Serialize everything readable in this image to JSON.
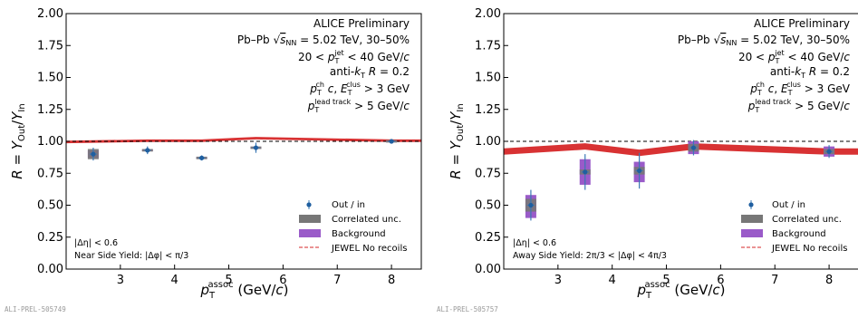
{
  "chart_data": [
    {
      "type": "scatter",
      "title": "",
      "xlabel": "p_T^assoc (GeV/c)",
      "ylabel": "R = Y_Out/Y_In",
      "xlim": [
        2.0,
        8.55
      ],
      "ylim": [
        0.0,
        2.0
      ],
      "xticks": [
        3,
        4,
        5,
        6,
        7,
        8
      ],
      "yticks": [
        0.0,
        0.25,
        0.5,
        0.75,
        1.0,
        1.25,
        1.5,
        1.75,
        2.0
      ],
      "xtick_labels": [
        "3",
        "4",
        "5",
        "6",
        "7",
        "8"
      ],
      "ytick_labels": [
        "0.00",
        "0.25",
        "0.50",
        "0.75",
        "1.00",
        "1.25",
        "1.50",
        "1.75",
        "2.00"
      ],
      "reference_line": 1.0,
      "info_lines": [
        "ALICE Preliminary",
        "Pb–Pb √sNN = 5.02 TeV, 30–50%",
        "20 < p_T^jet < 40 GeV/c",
        "anti-kT R = 0.2",
        "p_T^ch c, E_T^clus > 3 GeV",
        "p_T^lead track > 5 GeV/c"
      ],
      "legend": [
        "Out / in",
        "Correlated unc.",
        "Background",
        "JEWEL No recoils"
      ],
      "legend_placement": "lower-right",
      "notes": [
        "|Δη| < 0.6",
        "Near Side Yield: |Δφ| < π/3"
      ],
      "series": [
        {
          "name": "Out / in",
          "x": [
            2.5,
            3.5,
            4.5,
            5.5,
            8.0
          ],
          "y": [
            0.9,
            0.93,
            0.87,
            0.95,
            1.0
          ],
          "yerr": [
            0.05,
            0.03,
            0.02,
            0.04,
            0.01
          ]
        },
        {
          "name": "Correlated unc.",
          "x": [
            2.5,
            3.5,
            4.5,
            5.5,
            8.0
          ],
          "low": [
            0.86,
            0.92,
            0.86,
            0.94,
            0.99
          ],
          "high": [
            0.94,
            0.94,
            0.88,
            0.96,
            1.01
          ]
        },
        {
          "name": "Background",
          "x": [
            2.5,
            3.5,
            4.5,
            5.5,
            8.0
          ],
          "low": [
            0.87,
            0.925,
            0.865,
            0.945,
            0.995
          ],
          "high": [
            0.93,
            0.935,
            0.875,
            0.955,
            1.005
          ]
        },
        {
          "name": "JEWEL No recoils",
          "x": [
            2.0,
            3.5,
            4.5,
            5.5,
            8.0,
            8.55
          ],
          "low": [
            0.985,
            0.995,
            0.995,
            1.015,
            0.995,
            0.995
          ],
          "high": [
            1.005,
            1.015,
            1.015,
            1.035,
            1.015,
            1.015
          ]
        }
      ],
      "footer": "ALI-PREL-505749"
    },
    {
      "type": "scatter",
      "title": "",
      "xlabel": "p_T^assoc (GeV/c)",
      "ylabel": "R = Y_Out/Y_In",
      "xlim": [
        2.0,
        8.55
      ],
      "ylim": [
        0.0,
        2.0
      ],
      "xticks": [
        3,
        4,
        5,
        6,
        7,
        8
      ],
      "yticks": [
        0.0,
        0.25,
        0.5,
        0.75,
        1.0,
        1.25,
        1.5,
        1.75,
        2.0
      ],
      "xtick_labels": [
        "3",
        "4",
        "5",
        "6",
        "7",
        "8"
      ],
      "ytick_labels": [
        "0.00",
        "0.25",
        "0.50",
        "0.75",
        "1.00",
        "1.25",
        "1.50",
        "1.75",
        "2.00"
      ],
      "reference_line": 1.0,
      "info_lines": [
        "ALICE Preliminary",
        "Pb–Pb √sNN = 5.02 TeV, 30–50%",
        "20 < p_T^jet < 40 GeV/c",
        "anti-kT R = 0.2",
        "p_T^ch c, E_T^clus > 3 GeV",
        "p_T^lead track > 5 GeV/c"
      ],
      "legend": [
        "Out / in",
        "Correlated unc.",
        "Background",
        "JEWEL No recoils"
      ],
      "legend_placement": "lower-right",
      "notes": [
        "|Δη| < 0.6",
        "Away Side Yield: 2π/3 < |Δφ| < 4π/3"
      ],
      "series": [
        {
          "name": "Out / in",
          "x": [
            2.5,
            3.5,
            4.5,
            5.5,
            8.0
          ],
          "y": [
            0.5,
            0.76,
            0.77,
            0.95,
            0.92
          ],
          "yerr": [
            0.12,
            0.14,
            0.14,
            0.06,
            0.05
          ]
        },
        {
          "name": "Correlated unc.",
          "x": [
            2.5,
            3.5,
            4.5,
            5.5,
            8.0
          ],
          "low": [
            0.45,
            0.74,
            0.74,
            0.92,
            0.9
          ],
          "high": [
            0.55,
            0.78,
            0.8,
            0.98,
            0.94
          ]
        },
        {
          "name": "Background",
          "x": [
            2.5,
            3.5,
            4.5,
            5.5,
            8.0
          ],
          "low": [
            0.4,
            0.66,
            0.68,
            0.9,
            0.88
          ],
          "high": [
            0.58,
            0.86,
            0.84,
            1.0,
            0.96
          ]
        },
        {
          "name": "JEWEL No recoils",
          "x": [
            2.0,
            3.5,
            4.5,
            5.5,
            8.0,
            8.55
          ],
          "low": [
            0.895,
            0.935,
            0.885,
            0.935,
            0.895,
            0.895
          ],
          "high": [
            0.945,
            0.985,
            0.935,
            0.985,
            0.945,
            0.945
          ]
        }
      ],
      "footer": "ALI-PREL-505757"
    }
  ]
}
